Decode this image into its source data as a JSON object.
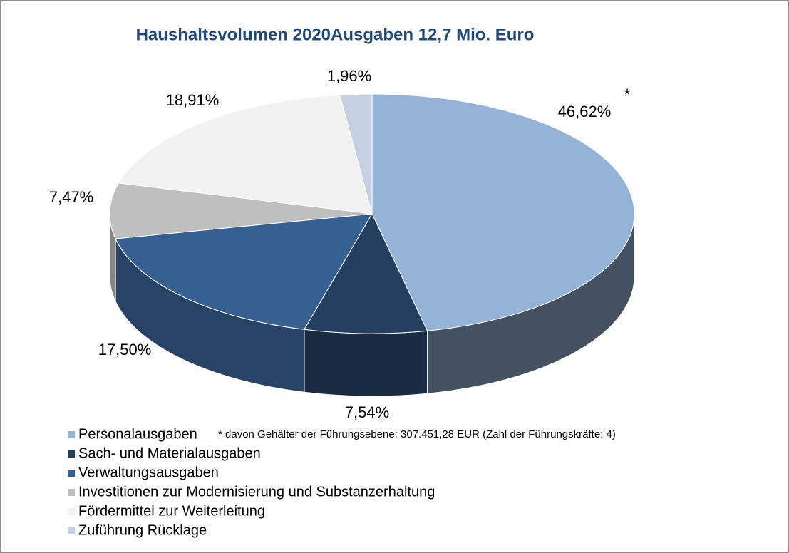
{
  "chart_data": {
    "type": "pie",
    "title": "Haushaltsvolumen 2020Ausgaben 12,7 Mio. Euro",
    "categories": [
      "Personalausgaben",
      "Sach- und Materialausgaben",
      "Verwaltungsausgaben",
      "Investitionen zur Modernisierung und Substanzerhaltung",
      "Fördermittel zur Weiterleitung",
      "Zuführung Rücklage"
    ],
    "values": [
      46.62,
      7.54,
      17.5,
      7.47,
      18.91,
      1.96
    ],
    "value_labels": [
      "46,62%",
      "7,54%",
      "17,50%",
      "7,47%",
      "18,91%",
      "1,96%"
    ],
    "colors": [
      "#95b3d7",
      "#243f60",
      "#376092",
      "#bfbfbf",
      "#f2f2f2",
      "#c5d0e3"
    ],
    "annotation": "*",
    "footnote": "* davon Gehälter der Führungsebene: 307.451,28 EUR (Zahl der Führungskräfte: 4)",
    "legend": "bottom-left"
  }
}
